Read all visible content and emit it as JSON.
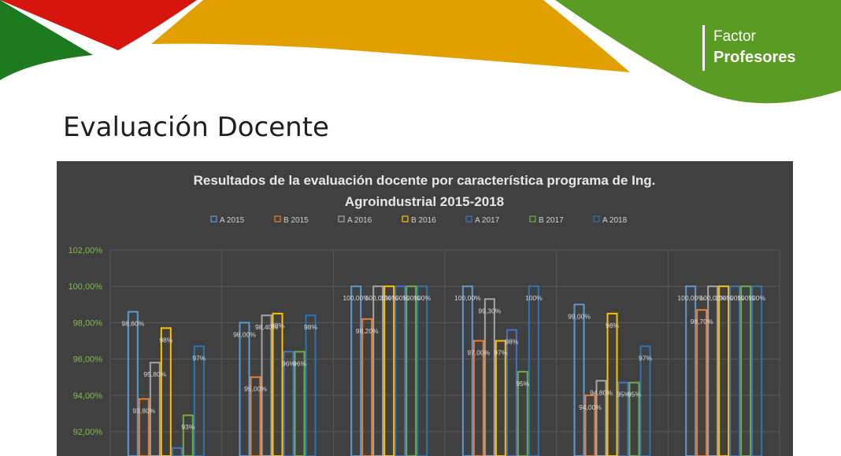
{
  "header": {
    "logo_line1": "Factor",
    "logo_line2": "Profesores",
    "colors": {
      "green": "#5a9b23",
      "red": "#d7150f",
      "orange": "#e2a000",
      "dark_green": "#1e7a1e"
    }
  },
  "page_title": "Evaluación Docente",
  "chart_data": {
    "type": "bar",
    "title_line1": "Resultados de la evaluación docente por característica programa de Ing.",
    "title_line2": "Agroindustrial 2015-2018",
    "legend_position": "top",
    "grid": true,
    "ylim": [
      90,
      102
    ],
    "y_ticks": [
      102,
      100,
      98,
      96,
      94,
      92
    ],
    "y_tick_labels": [
      "102,00%",
      "100,00%",
      "98,00%",
      "96,00%",
      "94,00%",
      "92,00%"
    ],
    "categories": [
      "",
      "",
      "",
      "",
      "",
      ""
    ],
    "series": [
      {
        "name": "A 2015",
        "color": "#5b9bd5",
        "values": [
          98.6,
          98.0,
          100.0,
          100.0,
          99.0,
          100.0
        ],
        "labels": [
          "98,60%",
          "98,00%",
          "100,00%",
          "100,00%",
          "99,00%",
          "100,00%"
        ]
      },
      {
        "name": "B 2015",
        "color": "#ed7d31",
        "values": [
          93.8,
          95.0,
          98.2,
          97.0,
          94.0,
          98.7
        ],
        "labels": [
          "93,80%",
          "95,00%",
          "98,20%",
          "97,00%",
          "94,00%",
          "98,70%"
        ]
      },
      {
        "name": "A 2016",
        "color": "#a5a5a5",
        "values": [
          95.8,
          98.4,
          100.0,
          99.3,
          94.8,
          100.0
        ],
        "labels": [
          "95,80%",
          "98,40%",
          "100,00%",
          "99,30%",
          "94,80%",
          "100,00%"
        ]
      },
      {
        "name": "B 2016",
        "color": "#ffc000",
        "values": [
          97.7,
          98.5,
          100.0,
          97.0,
          98.5,
          100.0
        ],
        "labels": [
          "98%",
          "98%",
          "100%",
          "97%",
          "98%",
          "100%"
        ]
      },
      {
        "name": "A 2017",
        "color": "#4472c4",
        "values": [
          91.1,
          96.4,
          100.0,
          97.6,
          94.7,
          100.0
        ],
        "labels": [
          "",
          "96%",
          "100%",
          "98%",
          "95%",
          "100%"
        ]
      },
      {
        "name": "B 2017",
        "color": "#70ad47",
        "values": [
          92.9,
          96.4,
          100.0,
          95.3,
          94.7,
          100.0
        ],
        "labels": [
          "93%",
          "96%",
          "100%",
          "95%",
          "95%",
          "100%"
        ]
      },
      {
        "name": "A 2018",
        "color": "#2e75b6",
        "values": [
          96.7,
          98.4,
          100.0,
          100.0,
          96.7,
          100.0
        ],
        "labels": [
          "97%",
          "98%",
          "100%",
          "100%",
          "97%",
          "100%"
        ]
      }
    ]
  }
}
